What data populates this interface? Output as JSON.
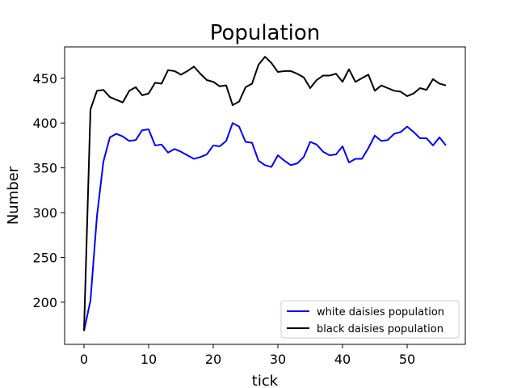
{
  "chart_data": {
    "type": "line",
    "title": "Population",
    "xlabel": "tick",
    "ylabel": "Number",
    "xlim": [
      -3,
      59
    ],
    "ylim": [
      153,
      485
    ],
    "xticks": [
      0,
      10,
      20,
      30,
      40,
      50
    ],
    "yticks": [
      200,
      250,
      300,
      350,
      400,
      450
    ],
    "grid": false,
    "legend_position": "lower-right",
    "x": [
      0,
      1,
      2,
      3,
      4,
      5,
      6,
      7,
      8,
      9,
      10,
      11,
      12,
      13,
      14,
      15,
      16,
      17,
      18,
      19,
      20,
      21,
      22,
      23,
      24,
      25,
      26,
      27,
      28,
      29,
      30,
      31,
      32,
      33,
      34,
      35,
      36,
      37,
      38,
      39,
      40,
      41,
      42,
      43,
      44,
      45,
      46,
      47,
      48,
      49,
      50,
      51,
      52,
      53,
      54,
      55,
      56
    ],
    "series": [
      {
        "name": "white daisies population",
        "color": "#0000ff",
        "values": [
          168,
          202,
          296,
          357,
          384,
          388,
          385,
          380,
          381,
          392,
          393,
          375,
          376,
          367,
          371,
          368,
          364,
          360,
          362,
          365,
          375,
          374,
          380,
          400,
          396,
          379,
          378,
          358,
          353,
          351,
          364,
          358,
          353,
          355,
          362,
          379,
          376,
          368,
          364,
          365,
          374,
          356,
          360,
          360,
          372,
          386,
          380,
          381,
          388,
          390,
          396,
          390,
          383,
          383,
          375,
          384,
          375
        ]
      },
      {
        "name": "black daisies population",
        "color": "#000000",
        "values": [
          168,
          415,
          436,
          437,
          429,
          426,
          423,
          436,
          440,
          431,
          433,
          445,
          444,
          459,
          458,
          454,
          458,
          463,
          455,
          448,
          446,
          441,
          442,
          420,
          424,
          440,
          444,
          465,
          474,
          467,
          457,
          458,
          458,
          455,
          451,
          439,
          448,
          453,
          453,
          455,
          446,
          460,
          446,
          450,
          454,
          436,
          442,
          439,
          436,
          435,
          430,
          433,
          439,
          437,
          449,
          444,
          442
        ]
      }
    ]
  }
}
